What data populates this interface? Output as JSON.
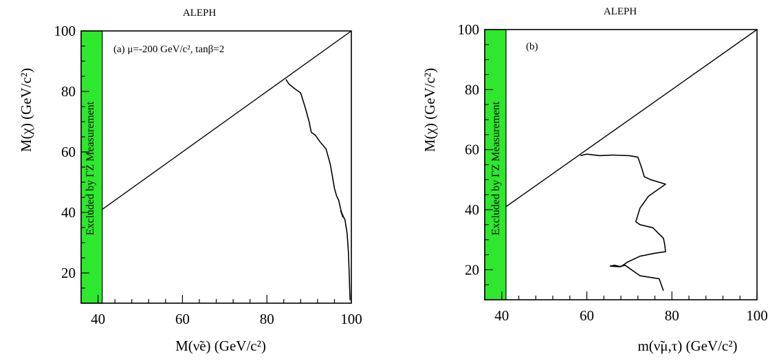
{
  "chart_data": [
    {
      "type": "line",
      "panel": "a",
      "title": "ALEPH",
      "annotation": "(a) μ=-200 GeV/c², tanβ=2",
      "xlabel": "M(ν̃e) (GeV/c²)",
      "ylabel": "M(χ) (GeV/c²)",
      "xlim": [
        36,
        100
      ],
      "ylim": [
        10,
        100
      ],
      "xticks": [
        "40",
        "60",
        "80",
        "100"
      ],
      "yticks": [
        "20",
        "40",
        "60",
        "80",
        "100"
      ],
      "excluded_band": {
        "label": "Excluded by ΓZ Measurement",
        "x": [
          36,
          41
        ],
        "color": "#2ee82e"
      },
      "diagonal": {
        "x": [
          41,
          100
        ],
        "y": [
          41,
          100
        ]
      },
      "series": [
        {
          "x": [
            84.5,
            85.2,
            86.5,
            88.0,
            89.0,
            90.0,
            90.5,
            91.5,
            92.5,
            94.0,
            95.0,
            95.5,
            96.0,
            96.5,
            97.0,
            97.5,
            98.0,
            97.5,
            98.5,
            99.0,
            99.3,
            99.5,
            99.6,
            99.7
          ],
          "y": [
            84.0,
            82.5,
            81.0,
            79.5,
            75.0,
            70.0,
            66.5,
            65.5,
            63.5,
            61.0,
            56.0,
            52.0,
            48.0,
            45.5,
            44.0,
            41.0,
            38.5,
            40.5,
            37.5,
            33.0,
            27.0,
            20.0,
            15.0,
            11.0
          ]
        }
      ]
    },
    {
      "type": "line",
      "panel": "b",
      "title": "ALEPH",
      "annotation": "(b)",
      "xlabel": "m(ν̃μ,τ) (GeV/c²)",
      "ylabel": "M(χ) (GeV/c²)",
      "xlim": [
        36,
        100
      ],
      "ylim": [
        10,
        100
      ],
      "xticks": [
        "40",
        "60",
        "80",
        "100"
      ],
      "yticks": [
        "20",
        "40",
        "60",
        "80",
        "100"
      ],
      "excluded_band": {
        "label": "Excluded by ΓZ Measurement",
        "x": [
          36,
          41
        ],
        "color": "#2ee82e"
      },
      "diagonal": {
        "x": [
          41,
          100
        ],
        "y": [
          41,
          100
        ]
      },
      "series": [
        {
          "x": [
            58.5,
            60.0,
            63.0,
            66.0,
            70.0,
            72.0,
            73.0,
            73.5,
            75.0,
            78.5,
            76.5,
            74.5,
            72.5,
            71.5,
            72.5,
            75.5,
            78.0,
            78.3,
            78.5,
            76.0,
            72.5,
            69.5,
            68.0,
            66.5,
            65.5,
            67.5,
            69.0,
            72.5,
            77.0,
            78.0
          ],
          "y": [
            58.0,
            58.5,
            58.0,
            58.2,
            58.0,
            57.5,
            53.5,
            51.0,
            50.0,
            48.5,
            46.5,
            44.5,
            40.5,
            36.0,
            35.0,
            34.0,
            30.5,
            28.5,
            26.0,
            25.5,
            24.5,
            22.5,
            21.0,
            21.5,
            21.2,
            21.0,
            21.5,
            18.0,
            17.0,
            13.0
          ]
        }
      ]
    }
  ]
}
